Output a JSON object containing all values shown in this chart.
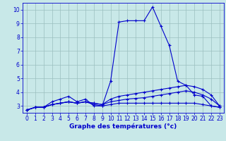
{
  "xlabel": "Graphe des températures (°c)",
  "hours": [
    0,
    1,
    2,
    3,
    4,
    5,
    6,
    7,
    8,
    9,
    10,
    11,
    12,
    13,
    14,
    15,
    16,
    17,
    18,
    19,
    20,
    21,
    22,
    23
  ],
  "temp_main": [
    2.7,
    2.9,
    2.9,
    3.3,
    3.5,
    3.7,
    3.3,
    3.5,
    3.0,
    3.0,
    4.8,
    9.1,
    9.2,
    9.2,
    9.2,
    10.2,
    8.8,
    7.4,
    4.8,
    4.5,
    3.8,
    3.7,
    3.0,
    2.9
  ],
  "temp_line2": [
    2.7,
    2.9,
    2.9,
    3.1,
    3.2,
    3.3,
    3.2,
    3.3,
    3.2,
    3.1,
    3.5,
    3.7,
    3.8,
    3.9,
    4.0,
    4.1,
    4.2,
    4.3,
    4.4,
    4.5,
    4.4,
    4.2,
    3.8,
    3.0
  ],
  "temp_line3": [
    2.7,
    2.9,
    2.9,
    3.1,
    3.2,
    3.3,
    3.2,
    3.3,
    3.2,
    3.1,
    3.3,
    3.4,
    3.5,
    3.55,
    3.6,
    3.7,
    3.8,
    3.9,
    4.0,
    4.1,
    4.0,
    3.8,
    3.5,
    3.0
  ],
  "temp_line4": [
    2.7,
    2.9,
    2.9,
    3.1,
    3.2,
    3.3,
    3.2,
    3.3,
    3.1,
    3.0,
    3.1,
    3.2,
    3.2,
    3.2,
    3.2,
    3.2,
    3.2,
    3.2,
    3.2,
    3.2,
    3.2,
    3.1,
    3.0,
    2.9
  ],
  "line_color": "#0000cc",
  "bg_color": "#c8e8e8",
  "grid_color": "#9bbfbf",
  "ylim": [
    2.5,
    10.5
  ],
  "xlim": [
    -0.5,
    23.5
  ],
  "yticks": [
    3,
    4,
    5,
    6,
    7,
    8,
    9,
    10
  ],
  "xticks": [
    0,
    1,
    2,
    3,
    4,
    5,
    6,
    7,
    8,
    9,
    10,
    11,
    12,
    13,
    14,
    15,
    16,
    17,
    18,
    19,
    20,
    21,
    22,
    23
  ],
  "tick_fontsize": 5.5,
  "xlabel_fontsize": 6.5,
  "linewidth": 0.8,
  "markersize": 3
}
